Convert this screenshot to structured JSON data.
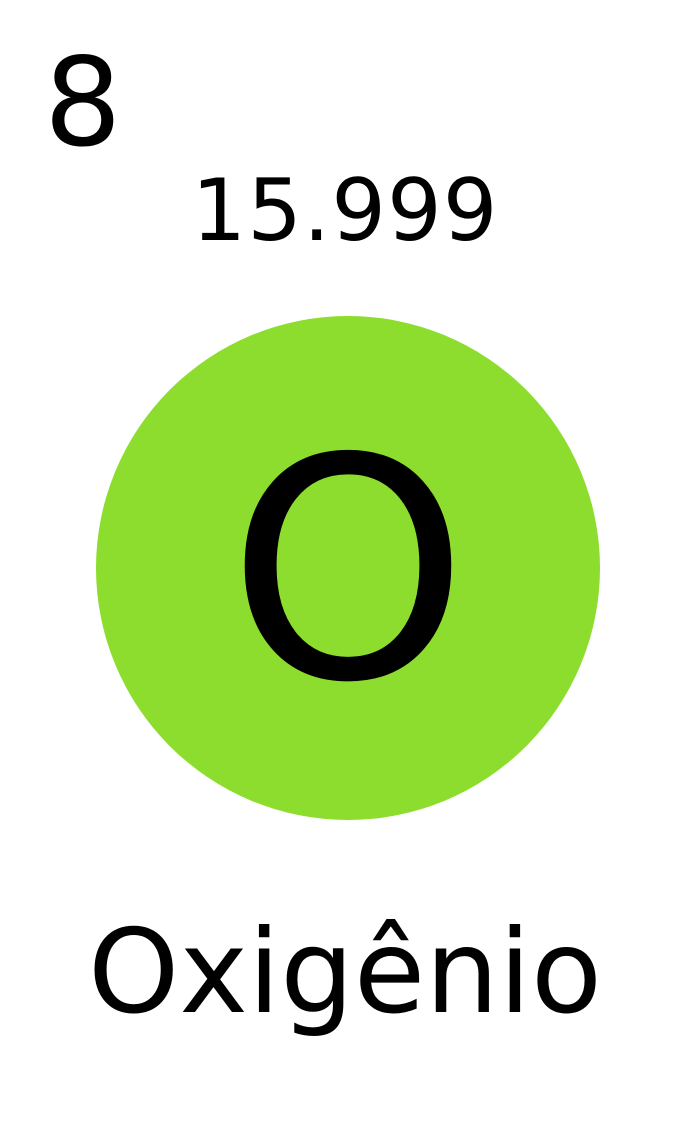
{
  "element": {
    "atomic_number": "8",
    "atomic_mass": "15.999",
    "symbol": "O",
    "name": "Oxigênio",
    "circle_color": "#8ddd2f"
  }
}
